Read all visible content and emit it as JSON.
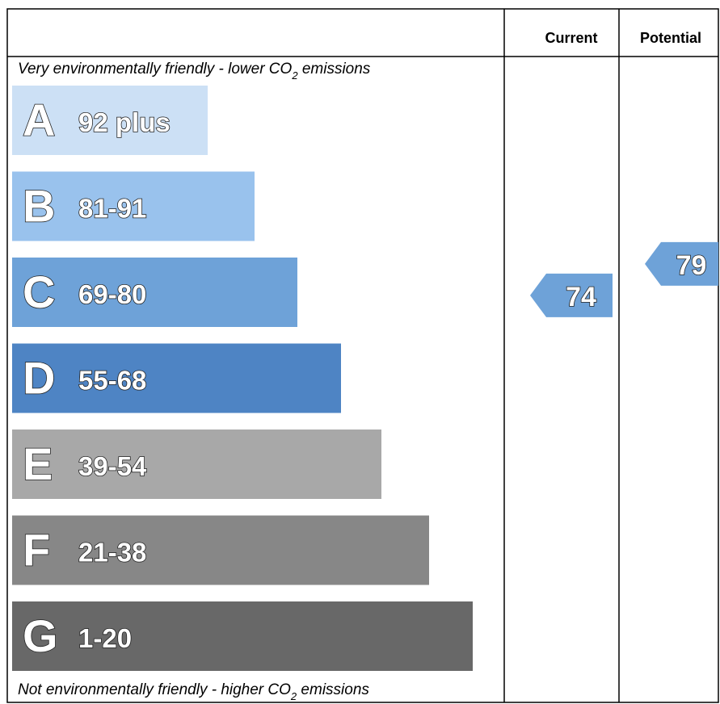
{
  "chart_data": {
    "type": "bar",
    "headers": {
      "current": "Current",
      "potential": "Potential"
    },
    "top_caption": {
      "before": "Very environmentally friendly - lower CO",
      "sub": "2",
      "after": " emissions"
    },
    "bottom_caption": {
      "before": "Not environmentally friendly - higher CO",
      "sub": "2",
      "after": " emissions"
    },
    "bands": [
      {
        "letter": "A",
        "range": "92 plus",
        "min": 92,
        "max": 100,
        "color": "#cce0f5"
      },
      {
        "letter": "B",
        "range": "81-91",
        "min": 81,
        "max": 91,
        "color": "#99c2ed"
      },
      {
        "letter": "C",
        "range": "69-80",
        "min": 69,
        "max": 80,
        "color": "#6ea2d8"
      },
      {
        "letter": "D",
        "range": "55-68",
        "min": 55,
        "max": 68,
        "color": "#4e84c4"
      },
      {
        "letter": "E",
        "range": "39-54",
        "min": 39,
        "max": 54,
        "color": "#a8a8a8"
      },
      {
        "letter": "F",
        "range": "21-38",
        "min": 21,
        "max": 38,
        "color": "#878787"
      },
      {
        "letter": "G",
        "range": "1-20",
        "min": 1,
        "max": 20,
        "color": "#686868"
      }
    ],
    "current": {
      "value": 74,
      "label": "74",
      "color": "#6ea2d8"
    },
    "potential": {
      "value": 79,
      "label": "79",
      "color": "#6ea2d8"
    }
  }
}
